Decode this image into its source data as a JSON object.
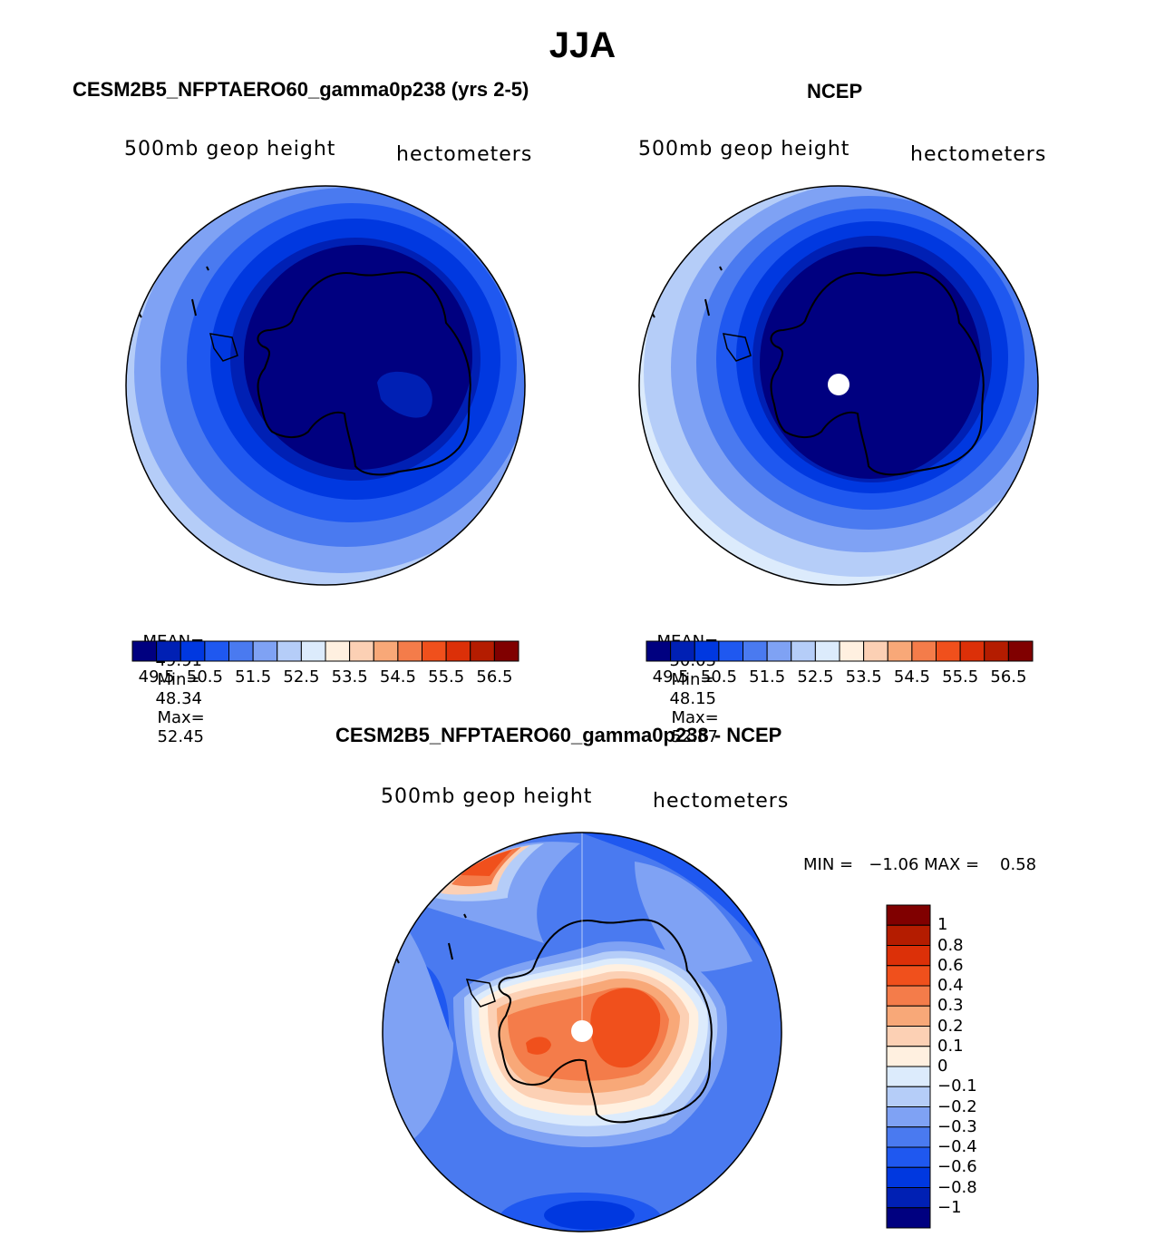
{
  "figure": {
    "title": "JJA",
    "panels": [
      {
        "id": "model",
        "heading": "CESM2B5_NFPTAERO60_gamma0p238 (yrs 2-5)",
        "variable": "500mb geop height",
        "units": "hectometers",
        "stats": {
          "mean_label": "MEAN=",
          "mean": "49.91",
          "min_label": "Min=",
          "min": "48.34",
          "max_label": "Max=",
          "max": "52.45"
        },
        "colorbar_ticks": [
          "49.5",
          "50.5",
          "51.5",
          "52.5",
          "53.5",
          "54.5",
          "55.5",
          "56.5"
        ]
      },
      {
        "id": "obs",
        "heading": "NCEP",
        "variable": "500mb geop height",
        "units": "hectometers",
        "stats": {
          "mean_label": "MEAN=",
          "mean": "50.03",
          "min_label": "Min=",
          "min": "48.15",
          "max_label": "Max=",
          "max": "52.57"
        },
        "colorbar_ticks": [
          "49.5",
          "50.5",
          "51.5",
          "52.5",
          "53.5",
          "54.5",
          "55.5",
          "56.5"
        ]
      }
    ],
    "difference": {
      "heading": "CESM2B5_NFPTAERO60_gamma0p238 - NCEP",
      "variable": "500mb geop height",
      "units": "hectometers",
      "minmax_text": "MIN =   −1.06 MAX =    0.58",
      "colorbar_ticks": [
        "1",
        "0.8",
        "0.6",
        "0.4",
        "0.3",
        "0.2",
        "0.1",
        "0",
        "−0.1",
        "−0.2",
        "−0.3",
        "−0.4",
        "−0.6",
        "−0.8",
        "−1"
      ]
    },
    "colors": {
      "abs_scale": [
        "#000080",
        "#0020b4",
        "#0038e0",
        "#1f58f0",
        "#4a7af0",
        "#7fa2f4",
        "#b5cdf8",
        "#dcebfc",
        "#fff0e0",
        "#fcd0b4",
        "#f8a878",
        "#f47c4a",
        "#f0501c",
        "#dc3008",
        "#b41c00",
        "#800000"
      ],
      "diff_scale": [
        "#800000",
        "#b41c00",
        "#dc3008",
        "#f0501c",
        "#f47c4a",
        "#f8a878",
        "#fcd0b4",
        "#fff0e0",
        "#dcebfc",
        "#b5cdf8",
        "#7fa2f4",
        "#4a7af0",
        "#1f58f0",
        "#0038e0",
        "#0020b4",
        "#000080"
      ]
    }
  }
}
